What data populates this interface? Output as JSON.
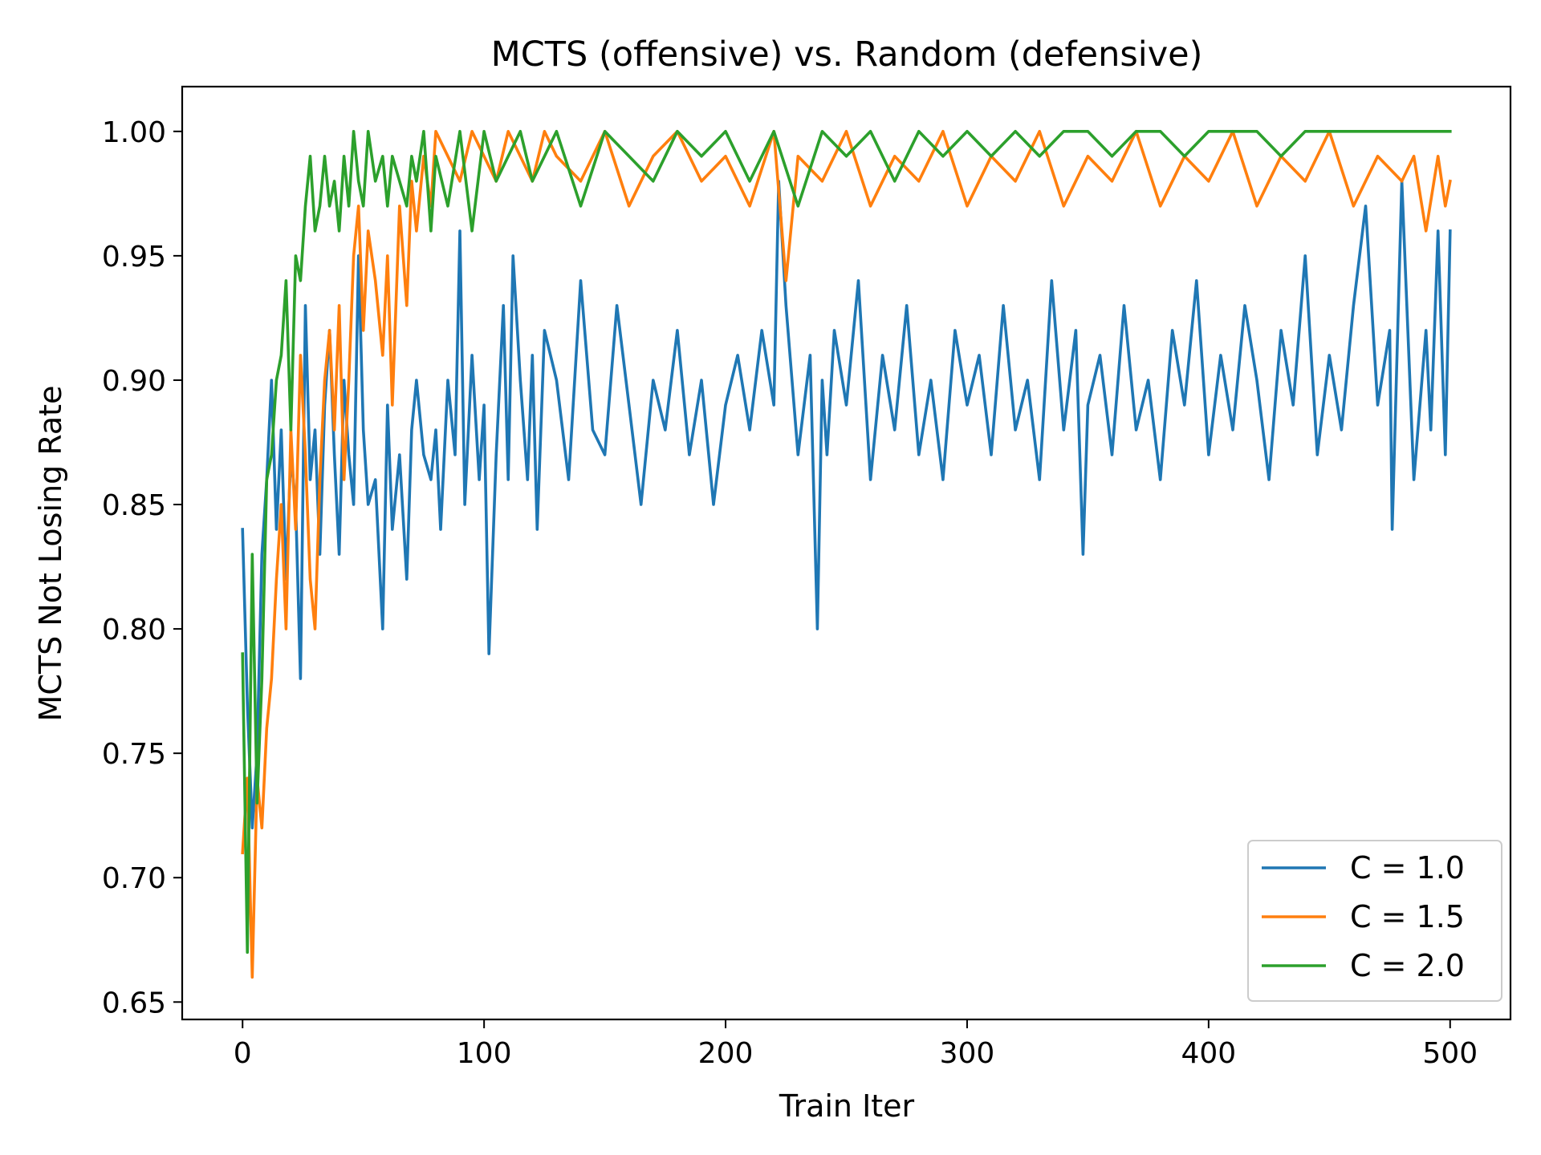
{
  "chart_data": {
    "type": "line",
    "title": "MCTS (offensive) vs. Random (defensive)",
    "xlabel": "Train Iter",
    "ylabel": "MCTS Not Losing Rate",
    "xlim": [
      -25,
      525
    ],
    "ylim": [
      0.643,
      1.018
    ],
    "x_ticks": [
      0,
      100,
      200,
      300,
      400,
      500
    ],
    "x_tick_labels": [
      "0",
      "100",
      "200",
      "300",
      "400",
      "500"
    ],
    "y_ticks": [
      0.65,
      0.7,
      0.75,
      0.8,
      0.85,
      0.9,
      0.95,
      1.0
    ],
    "y_tick_labels": [
      "0.65",
      "0.70",
      "0.75",
      "0.80",
      "0.85",
      "0.90",
      "0.95",
      "1.00"
    ],
    "grid": false,
    "legend_position": "lower-right",
    "series": [
      {
        "name": "C = 1.0",
        "color": "#1f77b4",
        "x": [
          0,
          2,
          4,
          6,
          8,
          10,
          12,
          14,
          16,
          18,
          20,
          22,
          24,
          26,
          28,
          30,
          32,
          34,
          36,
          38,
          40,
          42,
          44,
          46,
          48,
          50,
          52,
          55,
          58,
          60,
          62,
          65,
          68,
          70,
          72,
          75,
          78,
          80,
          82,
          85,
          88,
          90,
          92,
          95,
          98,
          100,
          102,
          105,
          108,
          110,
          112,
          115,
          118,
          120,
          122,
          125,
          130,
          135,
          140,
          145,
          150,
          155,
          160,
          165,
          170,
          175,
          180,
          185,
          190,
          195,
          200,
          205,
          210,
          215,
          220,
          222,
          225,
          230,
          235,
          238,
          240,
          242,
          245,
          250,
          255,
          260,
          265,
          270,
          275,
          280,
          285,
          290,
          295,
          300,
          305,
          310,
          315,
          320,
          325,
          330,
          335,
          340,
          345,
          348,
          350,
          355,
          360,
          365,
          370,
          375,
          380,
          385,
          390,
          395,
          400,
          405,
          410,
          415,
          420,
          425,
          430,
          435,
          440,
          445,
          450,
          455,
          460,
          465,
          470,
          475,
          476,
          480,
          485,
          490,
          492,
          495,
          498,
          500
        ],
        "y": [
          0.84,
          0.77,
          0.72,
          0.75,
          0.83,
          0.86,
          0.9,
          0.84,
          0.88,
          0.82,
          0.87,
          0.85,
          0.78,
          0.93,
          0.86,
          0.88,
          0.83,
          0.89,
          0.92,
          0.87,
          0.83,
          0.9,
          0.87,
          0.85,
          0.95,
          0.88,
          0.85,
          0.86,
          0.8,
          0.89,
          0.84,
          0.87,
          0.82,
          0.88,
          0.9,
          0.87,
          0.86,
          0.88,
          0.84,
          0.9,
          0.87,
          0.96,
          0.85,
          0.91,
          0.86,
          0.89,
          0.79,
          0.87,
          0.93,
          0.86,
          0.95,
          0.9,
          0.86,
          0.91,
          0.84,
          0.92,
          0.9,
          0.86,
          0.94,
          0.88,
          0.87,
          0.93,
          0.89,
          0.85,
          0.9,
          0.88,
          0.92,
          0.87,
          0.9,
          0.85,
          0.89,
          0.91,
          0.88,
          0.92,
          0.89,
          0.98,
          0.93,
          0.87,
          0.91,
          0.8,
          0.9,
          0.87,
          0.92,
          0.89,
          0.94,
          0.86,
          0.91,
          0.88,
          0.93,
          0.87,
          0.9,
          0.86,
          0.92,
          0.89,
          0.91,
          0.87,
          0.93,
          0.88,
          0.9,
          0.86,
          0.94,
          0.88,
          0.92,
          0.83,
          0.89,
          0.91,
          0.87,
          0.93,
          0.88,
          0.9,
          0.86,
          0.92,
          0.89,
          0.94,
          0.87,
          0.91,
          0.88,
          0.93,
          0.9,
          0.86,
          0.92,
          0.89,
          0.95,
          0.87,
          0.91,
          0.88,
          0.93,
          0.97,
          0.89,
          0.92,
          0.84,
          0.98,
          0.86,
          0.92,
          0.88,
          0.96,
          0.87,
          0.96
        ]
      },
      {
        "name": "C = 1.5",
        "color": "#ff7f0e",
        "x": [
          0,
          2,
          4,
          6,
          8,
          10,
          12,
          14,
          16,
          18,
          20,
          22,
          24,
          26,
          28,
          30,
          32,
          34,
          36,
          38,
          40,
          42,
          44,
          46,
          48,
          50,
          52,
          55,
          58,
          60,
          62,
          65,
          68,
          70,
          72,
          75,
          78,
          80,
          85,
          90,
          95,
          100,
          105,
          110,
          115,
          120,
          125,
          130,
          140,
          150,
          160,
          170,
          180,
          190,
          200,
          210,
          220,
          225,
          230,
          240,
          250,
          260,
          270,
          280,
          290,
          300,
          310,
          320,
          330,
          340,
          350,
          360,
          370,
          380,
          390,
          400,
          410,
          420,
          430,
          440,
          450,
          460,
          470,
          480,
          485,
          490,
          495,
          498,
          500
        ],
        "y": [
          0.71,
          0.74,
          0.66,
          0.74,
          0.72,
          0.76,
          0.78,
          0.82,
          0.85,
          0.8,
          0.88,
          0.84,
          0.91,
          0.87,
          0.82,
          0.8,
          0.86,
          0.9,
          0.92,
          0.88,
          0.93,
          0.86,
          0.9,
          0.95,
          0.97,
          0.92,
          0.96,
          0.94,
          0.91,
          0.95,
          0.89,
          0.97,
          0.93,
          0.98,
          0.96,
          0.99,
          0.97,
          1.0,
          0.99,
          0.98,
          1.0,
          0.99,
          0.98,
          1.0,
          0.99,
          0.98,
          1.0,
          0.99,
          0.98,
          1.0,
          0.97,
          0.99,
          1.0,
          0.98,
          0.99,
          0.97,
          1.0,
          0.94,
          0.99,
          0.98,
          1.0,
          0.97,
          0.99,
          0.98,
          1.0,
          0.97,
          0.99,
          0.98,
          1.0,
          0.97,
          0.99,
          0.98,
          1.0,
          0.97,
          0.99,
          0.98,
          1.0,
          0.97,
          0.99,
          0.98,
          1.0,
          0.97,
          0.99,
          0.98,
          0.99,
          0.96,
          0.99,
          0.97,
          0.98
        ]
      },
      {
        "name": "C = 2.0",
        "color": "#2ca02c",
        "x": [
          0,
          2,
          4,
          6,
          8,
          10,
          12,
          14,
          16,
          18,
          20,
          22,
          24,
          26,
          28,
          30,
          32,
          34,
          36,
          38,
          40,
          42,
          44,
          46,
          48,
          50,
          52,
          55,
          58,
          60,
          62,
          65,
          68,
          70,
          72,
          75,
          78,
          80,
          85,
          90,
          95,
          100,
          105,
          110,
          115,
          120,
          125,
          130,
          140,
          150,
          160,
          170,
          180,
          190,
          200,
          210,
          220,
          230,
          240,
          250,
          260,
          270,
          280,
          290,
          300,
          310,
          320,
          330,
          340,
          350,
          360,
          370,
          380,
          390,
          400,
          410,
          420,
          430,
          440,
          450,
          460,
          470,
          480,
          490,
          500
        ],
        "y": [
          0.79,
          0.67,
          0.83,
          0.73,
          0.78,
          0.86,
          0.87,
          0.9,
          0.91,
          0.94,
          0.88,
          0.95,
          0.94,
          0.97,
          0.99,
          0.96,
          0.97,
          0.99,
          0.97,
          0.98,
          0.96,
          0.99,
          0.97,
          1.0,
          0.98,
          0.97,
          1.0,
          0.98,
          0.99,
          0.97,
          0.99,
          0.98,
          0.97,
          0.99,
          0.98,
          1.0,
          0.96,
          0.99,
          0.97,
          1.0,
          0.96,
          1.0,
          0.98,
          0.99,
          1.0,
          0.98,
          0.99,
          1.0,
          0.97,
          1.0,
          0.99,
          0.98,
          1.0,
          0.99,
          1.0,
          0.98,
          1.0,
          0.97,
          1.0,
          0.99,
          1.0,
          0.98,
          1.0,
          0.99,
          1.0,
          0.99,
          1.0,
          0.99,
          1.0,
          1.0,
          0.99,
          1.0,
          1.0,
          0.99,
          1.0,
          1.0,
          1.0,
          0.99,
          1.0,
          1.0,
          1.0,
          1.0,
          1.0,
          1.0,
          1.0
        ]
      }
    ]
  }
}
